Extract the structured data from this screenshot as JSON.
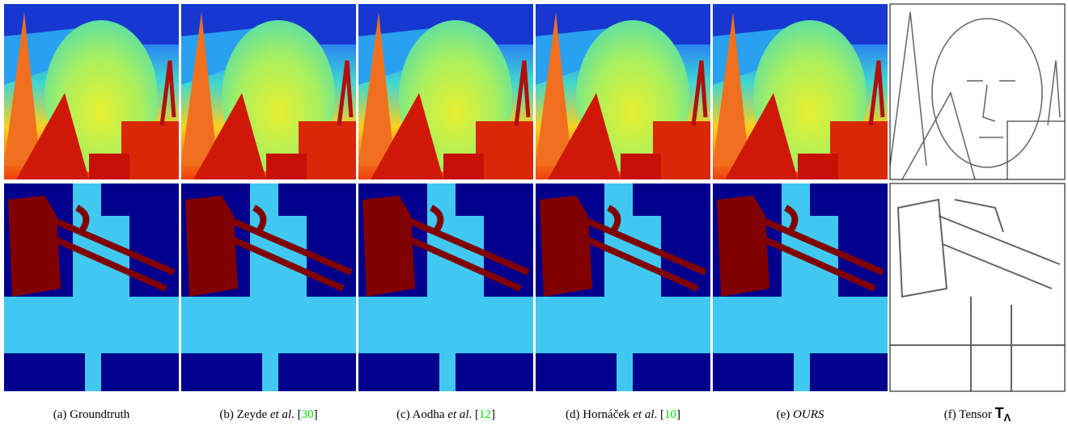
{
  "figure": {
    "captions": [
      {
        "text": "(a) Groundtruth"
      },
      {
        "text": "(b) Zeyde ",
        "em": "et al",
        "after": ". [",
        "ref": "30",
        "close": "]"
      },
      {
        "text": "(c) Aodha ",
        "em": "et al",
        "after": ". [",
        "ref": "12",
        "close": "]"
      },
      {
        "text": "(d) Hornáček ",
        "em": "et al",
        "after": ". [",
        "ref": "10",
        "close": "]"
      },
      {
        "text": "(e) ",
        "em": "OURS"
      },
      {
        "text": "(f) Tensor ",
        "math": "T",
        "sub": "Λ"
      }
    ]
  }
}
